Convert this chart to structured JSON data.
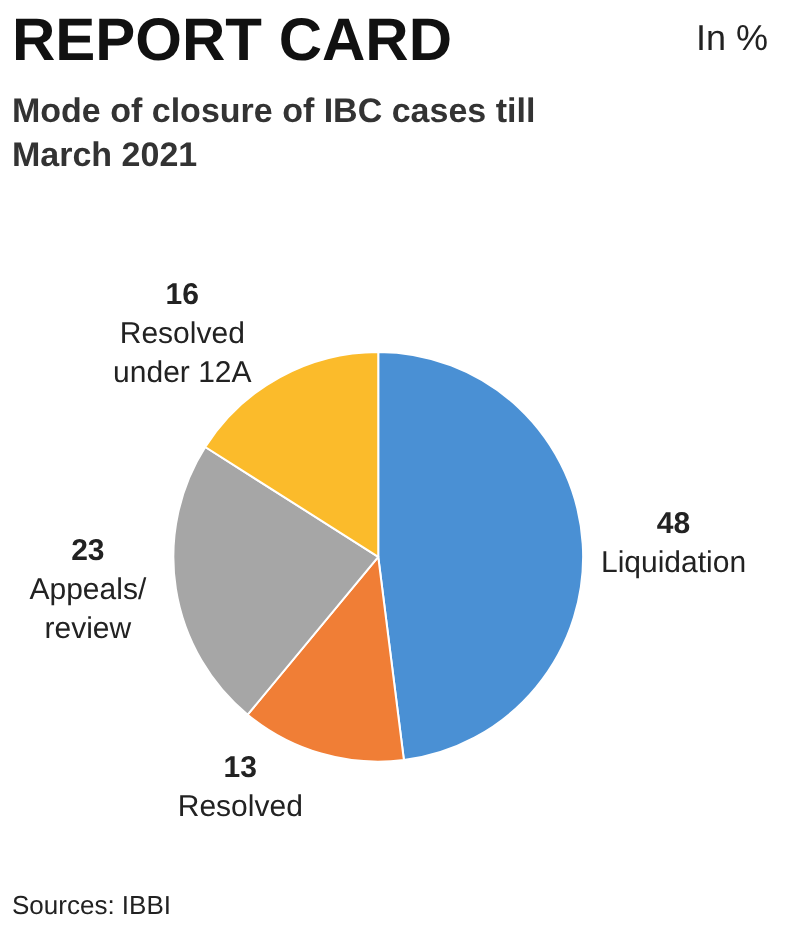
{
  "chart_data": {
    "type": "pie",
    "title": "REPORT CARD",
    "subtitle": "Mode of closure of IBC cases till March 2021",
    "annotations": [
      "In %",
      "Sources: IBBI"
    ],
    "categories": [
      "Liquidation",
      "Resolved",
      "Appeals/ review",
      "Resolved under 12A"
    ],
    "values": [
      48,
      13,
      23,
      16
    ],
    "colors": [
      "#4a90d4",
      "#f07e36",
      "#a6a6a6",
      "#fbbb2b"
    ],
    "data_labels": true,
    "legend": false
  }
}
